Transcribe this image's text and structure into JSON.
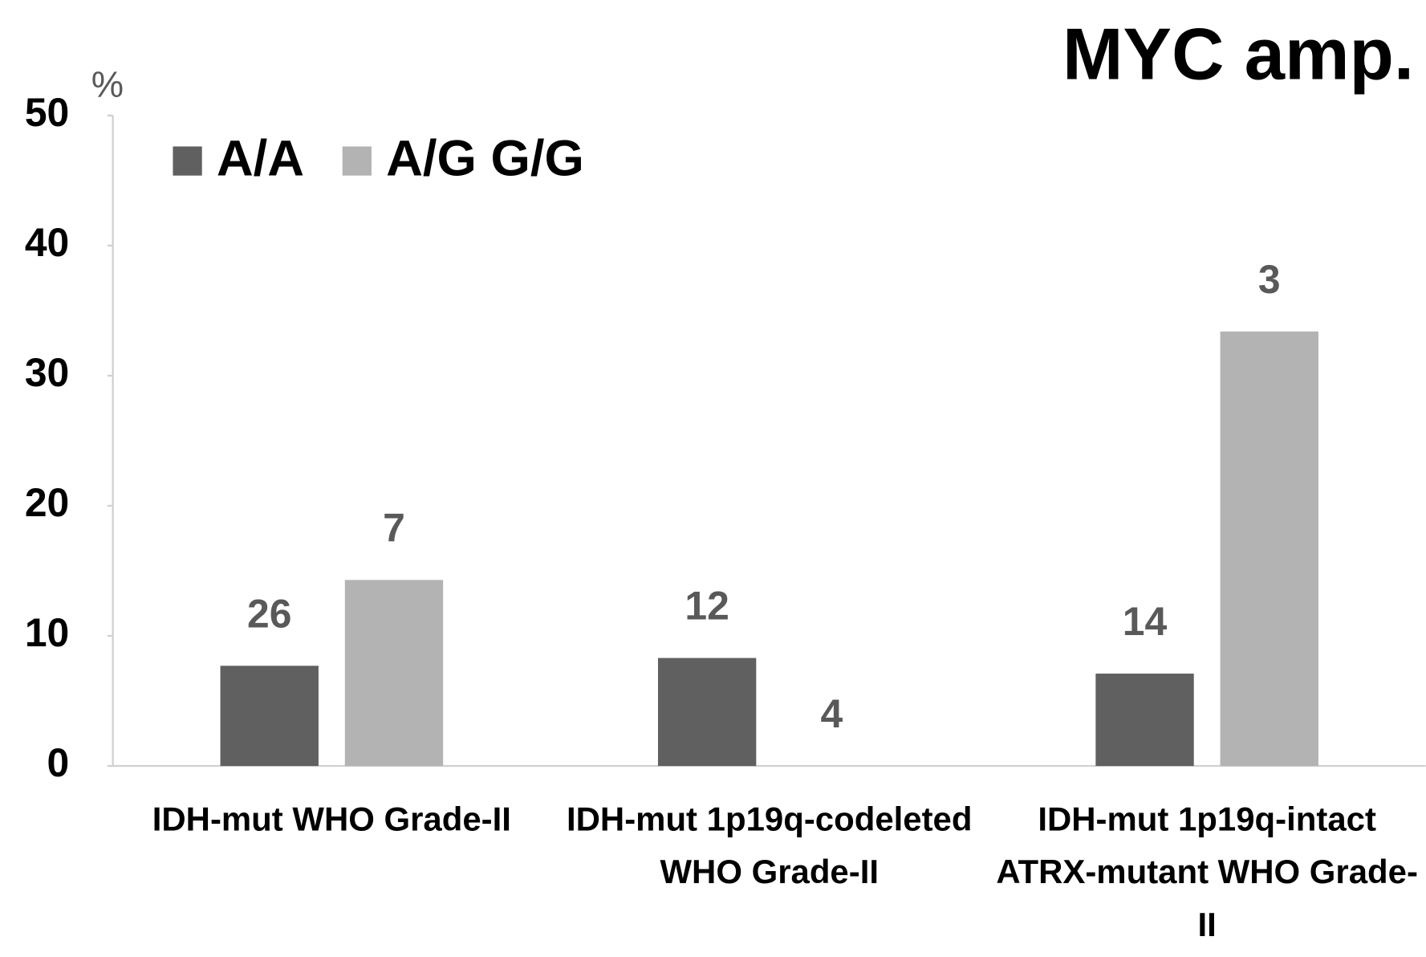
{
  "chart_data": {
    "type": "bar",
    "title": "MYC amp.",
    "y_unit": "%",
    "categories": [
      "IDH-mut WHO Grade-II",
      "IDH-mut 1p19q-codeleted WHO Grade-II",
      "IDH-mut 1p19q-intact ATRX-mutant WHO Grade-II"
    ],
    "series": [
      {
        "name": "A/A",
        "color": "#606060",
        "values": [
          7.7,
          8.3,
          7.1
        ],
        "counts": [
          26,
          12,
          14
        ]
      },
      {
        "name": "A/G G/G",
        "color": "#b3b3b3",
        "values": [
          14.3,
          0,
          33.4
        ],
        "counts": [
          7,
          4,
          3
        ]
      }
    ],
    "ylim": [
      0,
      50
    ],
    "yticks": [
      0,
      10,
      20,
      30,
      40,
      50
    ],
    "legend": "upper left"
  }
}
